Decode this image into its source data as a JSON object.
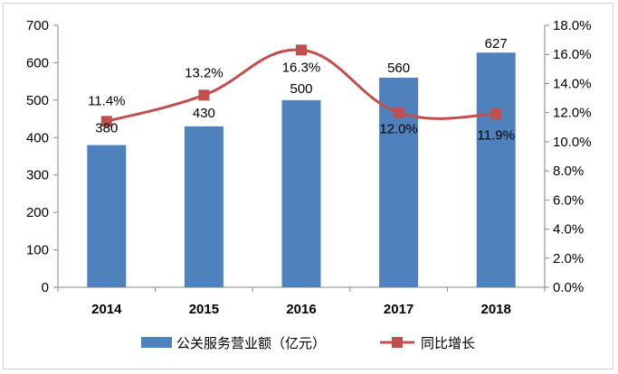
{
  "chart_data": {
    "type": "bar+line",
    "categories": [
      "2014",
      "2015",
      "2016",
      "2017",
      "2018"
    ],
    "series": [
      {
        "name": "公关服务营业额（亿元）",
        "type": "bar",
        "axis": "left",
        "values": [
          380,
          430,
          500,
          560,
          627
        ],
        "labels": [
          "380",
          "430",
          "500",
          "560",
          "627"
        ]
      },
      {
        "name": "同比增长",
        "type": "line",
        "axis": "right",
        "values": [
          11.4,
          13.2,
          16.3,
          12.0,
          11.9
        ],
        "labels": [
          "11.4%",
          "13.2%",
          "16.3%",
          "12.0%",
          "11.9%"
        ]
      }
    ],
    "y_left": {
      "min": 0,
      "max": 700,
      "step": 100,
      "ticks": [
        "0",
        "100",
        "200",
        "300",
        "400",
        "500",
        "600",
        "700"
      ]
    },
    "y_right": {
      "min": 0,
      "max": 18,
      "step": 2,
      "ticks": [
        "0.0%",
        "2.0%",
        "4.0%",
        "6.0%",
        "8.0%",
        "10.0%",
        "12.0%",
        "14.0%",
        "16.0%",
        "18.0%"
      ]
    },
    "grid": false,
    "legend_position": "bottom",
    "colors": {
      "bar": "#4f81bd",
      "line": "#c0504d"
    }
  }
}
